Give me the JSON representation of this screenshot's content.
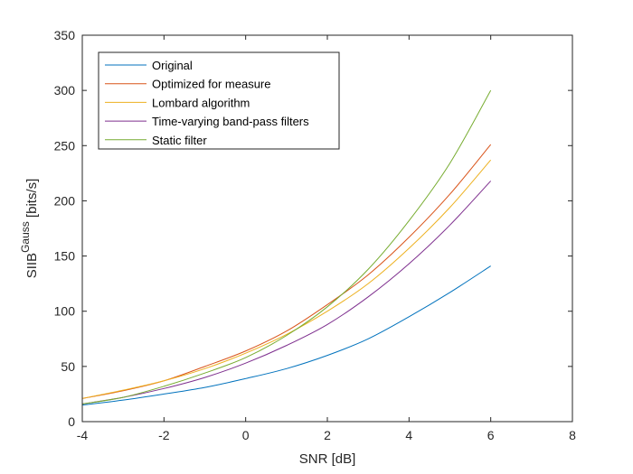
{
  "chart_data": {
    "type": "line",
    "xlabel": "SNR [dB]",
    "ylabel": {
      "base": "SIIB",
      "superscript": "Gauss",
      "suffix": " [bits/s]"
    },
    "xlim": [
      -4,
      8
    ],
    "ylim": [
      0,
      350
    ],
    "xticks": [
      -4,
      -2,
      0,
      2,
      4,
      6,
      8
    ],
    "yticks": [
      0,
      50,
      100,
      150,
      200,
      250,
      300,
      350
    ],
    "grid": false,
    "legend_position": "top-left",
    "x": [
      -4,
      -3,
      -2,
      -1,
      0,
      1,
      2,
      3,
      4,
      5,
      6
    ],
    "series": [
      {
        "name": "Original",
        "color": "#0072BD",
        "values": [
          15,
          19.5,
          25,
          31,
          39,
          48,
          60,
          75,
          95,
          117,
          141
        ]
      },
      {
        "name": "Optimized for measure",
        "color": "#D95319",
        "values": [
          21,
          28,
          37,
          50,
          64,
          82,
          106,
          133,
          167,
          206,
          251
        ]
      },
      {
        "name": "Lombard algorithm",
        "color": "#EDB120",
        "values": [
          21,
          28.5,
          37,
          48,
          62,
          79,
          100,
          125,
          157,
          194,
          237
        ]
      },
      {
        "name": "Time-varying band-pass filters",
        "color": "#7E2F8E",
        "values": [
          16,
          22,
          30,
          40,
          53,
          69,
          88,
          113,
          143,
          178,
          218
        ]
      },
      {
        "name": "Static filter",
        "color": "#77AC30",
        "values": [
          16,
          22,
          32,
          44,
          58,
          78,
          104,
          138,
          182,
          234,
          300
        ]
      }
    ]
  }
}
